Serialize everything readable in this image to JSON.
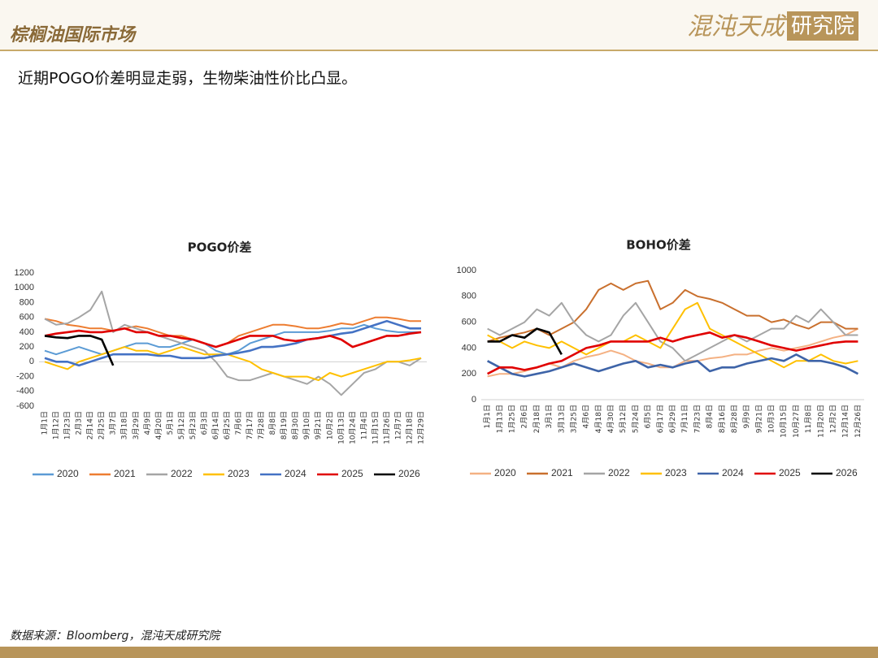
{
  "header": {
    "title": "棕榈油国际市场",
    "logo_name": "混沌天成",
    "logo_suffix": "研究院"
  },
  "subtitle": "近期POGO价差明显走弱，生物柴油性价比凸显。",
  "source": "数据来源：Bloomberg，混沌天成研究院",
  "chart_data": [
    {
      "type": "line",
      "title": "POGO价差",
      "categories": [
        "1月1日",
        "1月12日",
        "1月23日",
        "2月3日",
        "2月14日",
        "2月25日",
        "3月7日",
        "3月18日",
        "3月29日",
        "4月9日",
        "4月20日",
        "5月1日",
        "5月12日",
        "5月23日",
        "6月3日",
        "6月14日",
        "6月25日",
        "7月6日",
        "7月17日",
        "7月28日",
        "8月8日",
        "8月19日",
        "8月30日",
        "9月10日",
        "9月21日",
        "10月2日",
        "10月13日",
        "10月24日",
        "11月4日",
        "11月15日",
        "11月26日",
        "12月7日",
        "12月18日",
        "12月29日"
      ],
      "ylim": [
        -600,
        1200
      ],
      "yticks": [
        -600,
        -400,
        -200,
        0,
        200,
        400,
        600,
        800,
        1000,
        1200
      ],
      "series": [
        {
          "name": "2020",
          "color": "#5b9bd5",
          "values": [
            150,
            100,
            150,
            200,
            150,
            100,
            150,
            200,
            250,
            250,
            200,
            200,
            250,
            300,
            250,
            150,
            100,
            150,
            250,
            300,
            350,
            400,
            400,
            400,
            400,
            420,
            450,
            450,
            500,
            450,
            420,
            400,
            400,
            400
          ]
        },
        {
          "name": "2021",
          "color": "#ed7d31",
          "values": [
            580,
            550,
            500,
            480,
            450,
            450,
            420,
            450,
            480,
            450,
            400,
            350,
            350,
            300,
            250,
            200,
            250,
            350,
            400,
            450,
            500,
            500,
            480,
            450,
            450,
            480,
            520,
            500,
            550,
            600,
            600,
            580,
            550,
            550
          ]
        },
        {
          "name": "2022",
          "color": "#a5a5a5",
          "values": [
            580,
            500,
            520,
            600,
            700,
            950,
            400,
            500,
            450,
            400,
            350,
            300,
            250,
            200,
            150,
            0,
            -200,
            -250,
            -250,
            -200,
            -150,
            -200,
            -250,
            -300,
            -200,
            -300,
            -450,
            -300,
            -150,
            -100,
            0,
            0,
            -50,
            50
          ]
        },
        {
          "name": "2023",
          "color": "#ffc000",
          "values": [
            0,
            -50,
            -100,
            0,
            50,
            100,
            150,
            200,
            150,
            150,
            100,
            150,
            200,
            150,
            100,
            100,
            100,
            50,
            0,
            -100,
            -150,
            -200,
            -200,
            -200,
            -250,
            -150,
            -200,
            -150,
            -100,
            -50,
            0,
            0,
            20,
            50
          ]
        },
        {
          "name": "2024",
          "color": "#4472c4",
          "values": [
            50,
            0,
            0,
            -50,
            0,
            50,
            100,
            100,
            100,
            100,
            80,
            80,
            50,
            50,
            50,
            80,
            100,
            120,
            150,
            200,
            200,
            220,
            250,
            300,
            320,
            350,
            380,
            400,
            450,
            500,
            550,
            500,
            450,
            450
          ]
        },
        {
          "name": "2025",
          "color": "#e00000",
          "values": [
            350,
            380,
            400,
            420,
            400,
            400,
            420,
            450,
            400,
            400,
            350,
            350,
            320,
            300,
            250,
            200,
            250,
            300,
            350,
            350,
            350,
            300,
            280,
            300,
            320,
            350,
            300,
            200,
            250,
            300,
            350,
            350,
            380,
            400
          ]
        },
        {
          "name": "2026",
          "color": "#000000",
          "values": [
            350,
            330,
            320,
            350,
            350,
            300,
            -50,
            null,
            null,
            null,
            null,
            null,
            null,
            null,
            null,
            null,
            null,
            null,
            null,
            null,
            null,
            null,
            null,
            null,
            null,
            null,
            null,
            null,
            null,
            null,
            null,
            null,
            null,
            null
          ]
        }
      ]
    },
    {
      "type": "line",
      "title": "BOHO价差",
      "categories": [
        "1月1日",
        "1月13日",
        "1月25日",
        "2月6日",
        "2月18日",
        "3月1日",
        "3月13日",
        "3月25日",
        "4月6日",
        "4月18日",
        "4月30日",
        "5月12日",
        "5月24日",
        "6月5日",
        "6月17日",
        "6月29日",
        "7月11日",
        "7月23日",
        "8月4日",
        "8月16日",
        "8月28日",
        "9月9日",
        "9月21日",
        "10月3日",
        "10月15日",
        "10月27日",
        "11月8日",
        "11月20日",
        "12月2日",
        "12月14日",
        "12月26日"
      ],
      "ylim": [
        0,
        1000
      ],
      "yticks": [
        0,
        200,
        400,
        600,
        800,
        1000
      ],
      "series": [
        {
          "name": "2020",
          "color": "#f4b183",
          "values": [
            180,
            200,
            200,
            220,
            250,
            280,
            250,
            300,
            330,
            350,
            380,
            350,
            300,
            280,
            250,
            250,
            300,
            300,
            320,
            330,
            350,
            350,
            380,
            400,
            380,
            400,
            420,
            450,
            480,
            500,
            550
          ]
        },
        {
          "name": "2021",
          "color": "#c9702e",
          "values": [
            450,
            480,
            500,
            520,
            550,
            500,
            550,
            600,
            700,
            850,
            900,
            850,
            900,
            920,
            700,
            750,
            850,
            800,
            780,
            750,
            700,
            650,
            650,
            600,
            620,
            580,
            550,
            600,
            600,
            550,
            550
          ]
        },
        {
          "name": "2022",
          "color": "#a5a5a5",
          "values": [
            550,
            500,
            550,
            600,
            700,
            650,
            750,
            600,
            500,
            450,
            500,
            650,
            750,
            600,
            450,
            400,
            300,
            350,
            400,
            450,
            500,
            450,
            500,
            550,
            550,
            650,
            600,
            700,
            600,
            500,
            500
          ]
        },
        {
          "name": "2023",
          "color": "#ffc000",
          "values": [
            500,
            450,
            400,
            450,
            420,
            400,
            450,
            400,
            350,
            400,
            450,
            450,
            500,
            450,
            400,
            550,
            700,
            750,
            550,
            500,
            450,
            400,
            350,
            300,
            250,
            300,
            300,
            350,
            300,
            280,
            300
          ]
        },
        {
          "name": "2024",
          "color": "#3e64a8",
          "values": [
            300,
            250,
            200,
            180,
            200,
            220,
            250,
            280,
            250,
            220,
            250,
            280,
            300,
            250,
            270,
            250,
            280,
            300,
            220,
            250,
            250,
            280,
            300,
            320,
            300,
            350,
            300,
            300,
            280,
            250,
            200
          ]
        },
        {
          "name": "2025",
          "color": "#e00000",
          "values": [
            200,
            250,
            250,
            230,
            250,
            280,
            300,
            350,
            400,
            420,
            450,
            450,
            450,
            450,
            480,
            450,
            480,
            500,
            520,
            480,
            500,
            480,
            450,
            420,
            400,
            380,
            400,
            420,
            440,
            450,
            450
          ]
        },
        {
          "name": "2026",
          "color": "#000000",
          "values": [
            450,
            450,
            500,
            480,
            550,
            520,
            350,
            null,
            null,
            null,
            null,
            null,
            null,
            null,
            null,
            null,
            null,
            null,
            null,
            null,
            null,
            null,
            null,
            null,
            null,
            null,
            null,
            null,
            null,
            null,
            null
          ]
        }
      ]
    }
  ]
}
